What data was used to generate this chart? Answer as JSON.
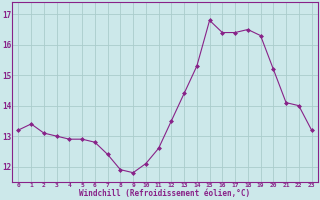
{
  "x": [
    0,
    1,
    2,
    3,
    4,
    5,
    6,
    7,
    8,
    9,
    10,
    11,
    12,
    13,
    14,
    15,
    16,
    17,
    18,
    19,
    20,
    21,
    22,
    23
  ],
  "y": [
    13.2,
    13.4,
    13.1,
    13.0,
    12.9,
    12.9,
    12.8,
    12.4,
    11.9,
    11.8,
    12.1,
    12.6,
    13.5,
    14.4,
    15.3,
    16.8,
    16.4,
    16.4,
    16.5,
    16.3,
    15.2,
    14.1,
    14.0,
    13.2
  ],
  "line_color": "#882288",
  "marker": "D",
  "marker_size": 2.0,
  "bg_color": "#cce8ea",
  "grid_color": "#aacccc",
  "xlabel": "Windchill (Refroidissement éolien,°C)",
  "xlabel_color": "#882288",
  "tick_color": "#882288",
  "ylim": [
    11.5,
    17.4
  ],
  "yticks": [
    12,
    13,
    14,
    15,
    16,
    17
  ],
  "xticks": [
    0,
    1,
    2,
    3,
    4,
    5,
    6,
    7,
    8,
    9,
    10,
    11,
    12,
    13,
    14,
    15,
    16,
    17,
    18,
    19,
    20,
    21,
    22,
    23
  ],
  "xlim": [
    -0.5,
    23.5
  ]
}
